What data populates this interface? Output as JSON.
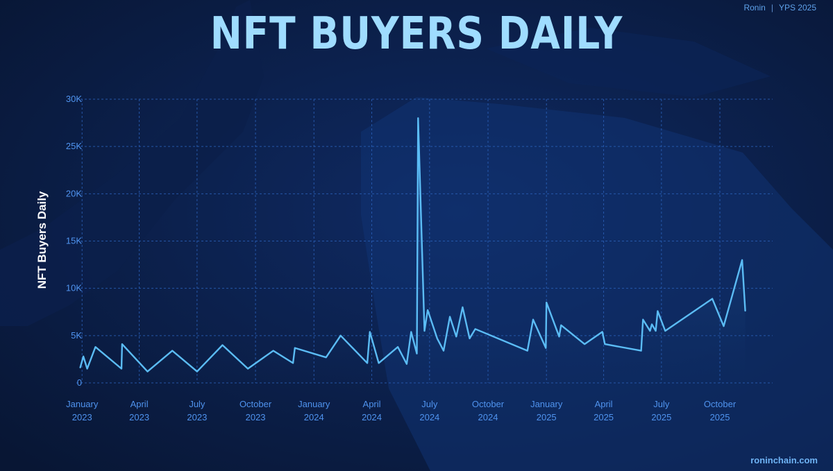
{
  "header": {
    "brand": "Ronin",
    "brand_suffix": "YPS 2025",
    "footer": "roninchain.com"
  },
  "colors": {
    "background": "#0a1a3d",
    "title": "#9fdcff",
    "line": "#5bbcf5",
    "grid": "#2a60b8",
    "tick": "#4f93ee"
  },
  "chart_data": {
    "type": "area",
    "title": "NFT BUYERS DAILY",
    "xlabel": "",
    "ylabel": "NFT Buyers Daily",
    "ylim": [
      0,
      30000
    ],
    "yticks": [
      {
        "value": 0,
        "label": "0"
      },
      {
        "value": 5000,
        "label": "5K"
      },
      {
        "value": 10000,
        "label": "10K"
      },
      {
        "value": 15000,
        "label": "15K"
      },
      {
        "value": 20000,
        "label": "20K"
      },
      {
        "value": 25000,
        "label": "25K"
      },
      {
        "value": 30000,
        "label": "30K"
      }
    ],
    "xlim": [
      "2022-12-23",
      "2025-12-23"
    ],
    "xticks": [
      {
        "date": "2023-01-01",
        "label": [
          "January",
          "2023"
        ]
      },
      {
        "date": "2023-04-01",
        "label": [
          "April",
          "2023"
        ]
      },
      {
        "date": "2023-07-01",
        "label": [
          "July",
          "2023"
        ]
      },
      {
        "date": "2023-10-01",
        "label": [
          "October",
          "2023"
        ]
      },
      {
        "date": "2024-01-01",
        "label": [
          "January",
          "2024"
        ]
      },
      {
        "date": "2024-04-01",
        "label": [
          "April",
          "2024"
        ]
      },
      {
        "date": "2024-07-01",
        "label": [
          "July",
          "2024"
        ]
      },
      {
        "date": "2024-10-01",
        "label": [
          "October",
          "2024"
        ]
      },
      {
        "date": "2025-01-01",
        "label": [
          "January",
          "2025"
        ]
      },
      {
        "date": "2025-04-01",
        "label": [
          "April",
          "2025"
        ]
      },
      {
        "date": "2025-07-01",
        "label": [
          "July",
          "2025"
        ]
      },
      {
        "date": "2025-10-01",
        "label": [
          "October",
          "2025"
        ]
      }
    ],
    "grid": true,
    "series": [
      {
        "points": [
          [
            "2022-12-29",
            1600
          ],
          [
            "2023-01-03",
            2800
          ],
          [
            "2023-01-09",
            1500
          ],
          [
            "2023-01-22",
            3800
          ],
          [
            "2023-03-04",
            1500
          ],
          [
            "2023-03-05",
            4100
          ],
          [
            "2023-04-14",
            1200
          ],
          [
            "2023-05-23",
            3400
          ],
          [
            "2023-07-01",
            1200
          ],
          [
            "2023-08-10",
            4000
          ],
          [
            "2023-09-19",
            1500
          ],
          [
            "2023-10-29",
            3400
          ],
          [
            "2023-11-29",
            2100
          ],
          [
            "2023-12-02",
            3700
          ],
          [
            "2024-01-20",
            2700
          ],
          [
            "2024-02-12",
            5000
          ],
          [
            "2024-03-25",
            2100
          ],
          [
            "2024-03-29",
            5400
          ],
          [
            "2024-04-12",
            2100
          ],
          [
            "2024-05-12",
            3800
          ],
          [
            "2024-05-26",
            2000
          ],
          [
            "2024-06-02",
            5400
          ],
          [
            "2024-06-11",
            3100
          ],
          [
            "2024-06-13",
            28000
          ],
          [
            "2024-06-23",
            5500
          ],
          [
            "2024-06-28",
            7700
          ],
          [
            "2024-07-13",
            4700
          ],
          [
            "2024-07-23",
            3400
          ],
          [
            "2024-08-02",
            7000
          ],
          [
            "2024-08-12",
            4900
          ],
          [
            "2024-08-22",
            8000
          ],
          [
            "2024-09-02",
            4700
          ],
          [
            "2024-09-11",
            5700
          ],
          [
            "2024-12-02",
            3400
          ],
          [
            "2024-12-11",
            6700
          ],
          [
            "2024-12-31",
            3700
          ],
          [
            "2025-01-01",
            8500
          ],
          [
            "2025-01-21",
            4900
          ],
          [
            "2025-01-24",
            6100
          ],
          [
            "2025-03-02",
            4100
          ],
          [
            "2025-03-30",
            5400
          ],
          [
            "2025-04-03",
            4100
          ],
          [
            "2025-05-30",
            3400
          ],
          [
            "2025-06-02",
            6700
          ],
          [
            "2025-06-13",
            5500
          ],
          [
            "2025-06-16",
            6200
          ],
          [
            "2025-06-22",
            5500
          ],
          [
            "2025-06-25",
            7600
          ],
          [
            "2025-07-07",
            5500
          ],
          [
            "2025-09-19",
            8900
          ],
          [
            "2025-10-07",
            6000
          ],
          [
            "2025-11-05",
            13000
          ],
          [
            "2025-11-10",
            7600
          ]
        ]
      }
    ]
  }
}
